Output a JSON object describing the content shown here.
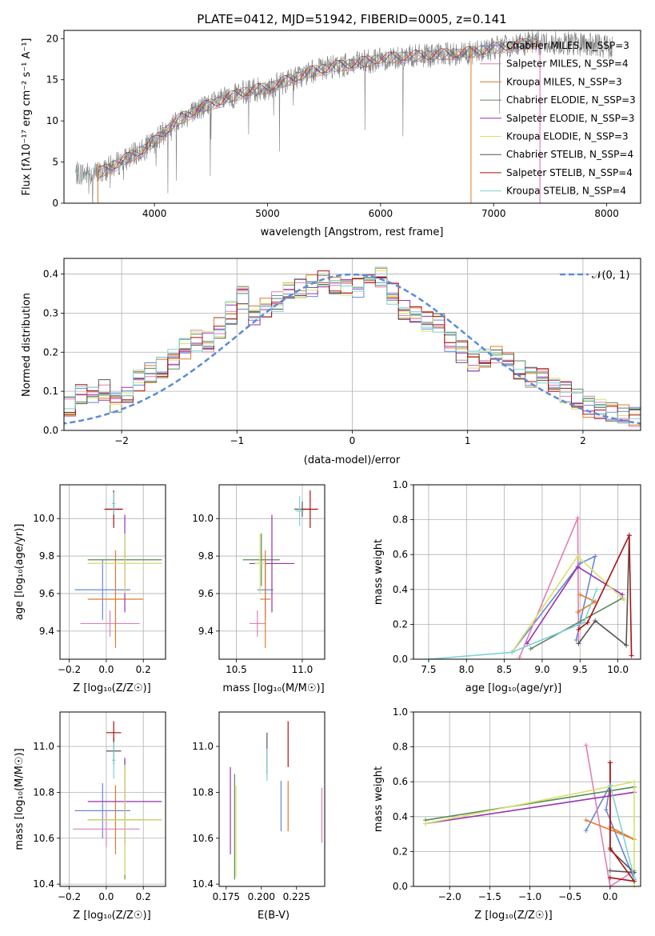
{
  "colors": {
    "Chabrier MILES": "#6688d8",
    "Salpeter MILES": "#e07fb5",
    "Kroupa MILES": "#e07b2a",
    "Chabrier ELODIE": "#5a8a5a",
    "Salpeter ELODIE": "#9932b0",
    "Kroupa ELODIE": "#d7e26a",
    "Chabrier STELIB": "#555555",
    "Salpeter STELIB": "#aa1111",
    "Kroupa STELIB": "#7fd0d8",
    "data": "#808080",
    "normal": "#5b8bd8"
  },
  "chart_data": [
    {
      "type": "line",
      "title": "PLATE=0412, MJD=51942, FIBERID=0005, z=0.141",
      "xlabel": "wavelength [Angstrom, rest frame]",
      "ylabel": "Flux [fλ10⁻¹⁷ erg cm⁻² s⁻¹ A⁻¹]",
      "xlim": [
        3200,
        8300
      ],
      "ylim": [
        0,
        21
      ],
      "xticks": [
        4000,
        5000,
        6000,
        7000,
        8000
      ],
      "yticks": [
        0,
        5,
        10,
        15,
        20
      ],
      "grid": false,
      "legend": "top-right",
      "legend_entries": [
        "Chabrier MILES, N_SSP=3",
        "Salpeter MILES, N_SSP=4",
        "Kroupa MILES, N_SSP=3",
        "Chabrier ELODIE, N_SSP=3",
        "Salpeter ELODIE, N_SSP=3",
        "Kroupa ELODIE, N_SSP=3",
        "Chabrier STELIB, N_SSP=4",
        "Salpeter STELIB, N_SSP=4",
        "Kroupa STELIB, N_SSP=4"
      ],
      "spectrum_anchors": {
        "wavelength": [
          3300,
          3500,
          3700,
          3900,
          4000,
          4200,
          4400,
          4600,
          4800,
          5000,
          5200,
          5400,
          5600,
          5800,
          6000,
          6200,
          6400,
          6600,
          6800,
          7000,
          7200,
          7400,
          7600,
          7800,
          8050
        ],
        "flux": [
          3.6,
          3.6,
          5.0,
          6.5,
          7.5,
          10.0,
          11.5,
          12.5,
          13.5,
          14.0,
          15.0,
          16.0,
          16.6,
          17.0,
          17.5,
          17.8,
          17.9,
          18.1,
          18.3,
          18.8,
          19.2,
          19.5,
          19.5,
          19.3,
          19.0
        ]
      }
    },
    {
      "type": "bar",
      "xlabel": "(data-model)/error",
      "ylabel": "Normed distribution",
      "xlim": [
        -2.5,
        2.5
      ],
      "ylim": [
        0,
        0.44
      ],
      "xticks": [
        -2,
        -1,
        0,
        1,
        2
      ],
      "yticks": [
        0.0,
        0.1,
        0.2,
        0.3,
        0.4
      ],
      "grid": true,
      "legend": "top-right",
      "legend_label": "𝒩(0, 1)",
      "bin_width": 0.1,
      "envelope_centers": [
        -2.45,
        -2.35,
        -2.25,
        -2.15,
        -2.05,
        -1.95,
        -1.85,
        -1.75,
        -1.65,
        -1.55,
        -1.45,
        -1.35,
        -1.25,
        -1.15,
        -1.05,
        -0.95,
        -0.85,
        -0.75,
        -0.65,
        -0.55,
        -0.45,
        -0.35,
        -0.25,
        -0.15,
        -0.05,
        0.05,
        0.15,
        0.25,
        0.35,
        0.45,
        0.55,
        0.65,
        0.75,
        0.85,
        0.95,
        1.05,
        1.15,
        1.25,
        1.35,
        1.45,
        1.55,
        1.65,
        1.75,
        1.85,
        1.95,
        2.05,
        2.15,
        2.25,
        2.35,
        2.45
      ],
      "envelope_values": [
        0.06,
        0.09,
        0.09,
        0.1,
        0.07,
        0.1,
        0.13,
        0.15,
        0.16,
        0.18,
        0.21,
        0.23,
        0.23,
        0.26,
        0.3,
        0.34,
        0.3,
        0.32,
        0.33,
        0.35,
        0.36,
        0.37,
        0.38,
        0.37,
        0.36,
        0.37,
        0.38,
        0.39,
        0.35,
        0.31,
        0.3,
        0.28,
        0.27,
        0.23,
        0.2,
        0.18,
        0.19,
        0.19,
        0.17,
        0.15,
        0.14,
        0.15,
        0.12,
        0.1,
        0.08,
        0.06,
        0.05,
        0.05,
        0.04,
        0.03
      ]
    },
    {
      "type": "scatter",
      "xlabel": "Z [log₁₀(Z/Z☉)]",
      "ylabel": "age  [log₁₀(age/yr)]",
      "xlim": [
        -0.25,
        0.32
      ],
      "ylim": [
        9.25,
        10.18
      ],
      "xticks": [
        -0.2,
        0.0,
        0.2
      ],
      "yticks": [
        9.4,
        9.6,
        9.8,
        10.0
      ],
      "grid": true,
      "points": [
        {
          "x": -0.02,
          "y": 9.62,
          "xerr": 0.15,
          "yerr": 0.16
        },
        {
          "x": 0.02,
          "y": 9.44,
          "xerr": 0.16,
          "yerr": 0.07
        },
        {
          "x": 0.05,
          "y": 9.57,
          "xerr": 0.15,
          "yerr": 0.26
        },
        {
          "x": 0.1,
          "y": 9.78,
          "xerr": 0.2,
          "yerr": 0.14
        },
        {
          "x": 0.1,
          "y": 9.76,
          "xerr": 0.2,
          "yerr": 0.26
        },
        {
          "x": 0.1,
          "y": 9.76,
          "xerr": 0.2,
          "yerr": 0.16
        },
        {
          "x": 0.04,
          "y": 10.05,
          "xerr": 0.04,
          "yerr": 0.04
        },
        {
          "x": 0.04,
          "y": 10.05,
          "xerr": 0.05,
          "yerr": 0.1
        },
        {
          "x": 0.04,
          "y": 10.08,
          "xerr": 0.01,
          "yerr": 0.06
        }
      ]
    },
    {
      "type": "scatter",
      "xlabel": "mass [log₁₀(M/M☉)]",
      "ylabel": "",
      "xlim": [
        10.37,
        11.17
      ],
      "ylim": [
        9.25,
        10.18
      ],
      "xticks": [
        10.5,
        11.0
      ],
      "yticks": [
        9.4,
        9.6,
        9.8,
        10.0
      ],
      "grid": true,
      "points": [
        {
          "x": 10.72,
          "y": 9.62,
          "xerr": 0.06,
          "yerr": 0.16
        },
        {
          "x": 10.66,
          "y": 9.44,
          "xerr": 0.06,
          "yerr": 0.07
        },
        {
          "x": 10.72,
          "y": 9.57,
          "xerr": 0.04,
          "yerr": 0.26
        },
        {
          "x": 10.69,
          "y": 9.78,
          "xerr": 0.14,
          "yerr": 0.14
        },
        {
          "x": 10.77,
          "y": 9.76,
          "xerr": 0.17,
          "yerr": 0.26
        },
        {
          "x": 10.68,
          "y": 9.76,
          "xerr": 0.04,
          "yerr": 0.16
        },
        {
          "x": 11.0,
          "y": 10.05,
          "xerr": 0.06,
          "yerr": 0.04
        },
        {
          "x": 11.06,
          "y": 10.05,
          "xerr": 0.06,
          "yerr": 0.1
        },
        {
          "x": 10.98,
          "y": 10.04,
          "xerr": 0.03,
          "yerr": 0.08
        }
      ]
    },
    {
      "type": "line",
      "xlabel": "age  [log₁₀(age/yr)]",
      "ylabel": "mass weight",
      "xlim": [
        7.3,
        10.3
      ],
      "ylim": [
        0,
        1
      ],
      "xticks": [
        7.5,
        8.0,
        8.5,
        9.0,
        9.5,
        10.0
      ],
      "yticks": [
        0.0,
        0.2,
        0.4,
        0.6,
        0.8,
        1.0
      ],
      "grid": true,
      "series": [
        {
          "x": [
            8.6,
            9.5,
            9.7,
            9.5,
            9.45
          ],
          "y": [
            0.04,
            0.55,
            0.59,
            0.21,
            0.11
          ]
        },
        {
          "x": [
            8.7,
            9.47,
            9.48
          ],
          "y": [
            0.01,
            0.81,
            0.09
          ]
        },
        {
          "x": [
            9.47,
            9.7,
            9.5
          ],
          "y": [
            0.27,
            0.33,
            0.37
          ]
        },
        {
          "x": [
            8.85,
            10.06
          ],
          "y": [
            0.06,
            0.35
          ]
        },
        {
          "x": [
            8.8,
            9.47,
            10.06
          ],
          "y": [
            0.09,
            0.53,
            0.37
          ]
        },
        {
          "x": [
            8.6,
            9.47,
            10.08
          ],
          "y": [
            0.04,
            0.59,
            0.34
          ]
        },
        {
          "x": [
            9.48,
            9.7,
            10.11,
            10.15
          ],
          "y": [
            0.09,
            0.22,
            0.08,
            0.71
          ]
        },
        {
          "x": [
            9.48,
            9.6,
            10.15,
            10.18
          ],
          "y": [
            0.17,
            0.21,
            0.71,
            0.02
          ]
        },
        {
          "x": [
            7.5,
            8.6,
            9.55,
            9.72
          ],
          "y": [
            0.0,
            0.04,
            0.21,
            0.4
          ]
        }
      ]
    },
    {
      "type": "scatter",
      "xlabel": "Z [log₁₀(Z/Z☉)]",
      "ylabel": "mass [log₁₀(M/M☉)]",
      "xlim": [
        -0.25,
        0.32
      ],
      "ylim": [
        10.39,
        11.15
      ],
      "xticks": [
        -0.2,
        0.0,
        0.2
      ],
      "yticks": [
        10.4,
        10.6,
        10.8,
        11.0
      ],
      "grid": true,
      "points": [
        {
          "x": -0.02,
          "y": 10.72,
          "xerr": 0.15,
          "yerr": 0.12
        },
        {
          "x": 0.0,
          "y": 10.64,
          "xerr": 0.18,
          "yerr": 0.08
        },
        {
          "x": 0.05,
          "y": 10.68,
          "xerr": 0.15,
          "yerr": 0.15
        },
        {
          "x": 0.1,
          "y": 10.68,
          "xerr": 0.2,
          "yerr": 0.26
        },
        {
          "x": 0.1,
          "y": 10.76,
          "xerr": 0.2,
          "yerr": 0.19
        },
        {
          "x": 0.1,
          "y": 10.68,
          "xerr": 0.2,
          "yerr": 0.24
        },
        {
          "x": 0.04,
          "y": 10.98,
          "xerr": 0.04,
          "yerr": 0.06
        },
        {
          "x": 0.04,
          "y": 11.06,
          "xerr": 0.04,
          "yerr": 0.05
        },
        {
          "x": 0.04,
          "y": 10.94,
          "xerr": 0.01,
          "yerr": 0.08
        }
      ]
    },
    {
      "type": "scatter",
      "xlabel": "E(B-V)",
      "ylabel": "",
      "xlim": [
        0.17,
        0.245
      ],
      "ylim": [
        10.39,
        11.15
      ],
      "xticks": [
        0.175,
        0.2,
        0.225
      ],
      "yticks": [
        10.4,
        10.6,
        10.8,
        11.0
      ],
      "grid": false,
      "points": [
        {
          "x": 0.214,
          "y": 10.74,
          "xerr": 0,
          "yerr": 0.11
        },
        {
          "x": 0.243,
          "y": 10.7,
          "xerr": 0,
          "yerr": 0.12
        },
        {
          "x": 0.219,
          "y": 10.74,
          "xerr": 0,
          "yerr": 0.11
        },
        {
          "x": 0.181,
          "y": 10.65,
          "xerr": 0,
          "yerr": 0.23
        },
        {
          "x": 0.178,
          "y": 10.72,
          "xerr": 0,
          "yerr": 0.19
        },
        {
          "x": 0.182,
          "y": 10.63,
          "xerr": 0,
          "yerr": 0.2
        },
        {
          "x": 0.204,
          "y": 10.97,
          "xerr": 0,
          "yerr": 0.09
        },
        {
          "x": 0.219,
          "y": 11.01,
          "xerr": 0,
          "yerr": 0.1
        },
        {
          "x": 0.204,
          "y": 10.92,
          "xerr": 0,
          "yerr": 0.07
        }
      ]
    },
    {
      "type": "line",
      "xlabel": "Z [log₁₀(Z/Z☉)]",
      "ylabel": "mass weight",
      "xlim": [
        -2.45,
        0.38
      ],
      "ylim": [
        0,
        1
      ],
      "xticks": [
        -2.0,
        -1.5,
        -1.0,
        -0.5,
        0.0
      ],
      "yticks": [
        0.0,
        0.2,
        0.4,
        0.6,
        0.8,
        1.0
      ],
      "grid": true,
      "series": [
        {
          "x": [
            -0.3,
            0.0,
            -0.05,
            0.3
          ],
          "y": [
            0.32,
            0.58,
            0.44,
            0.04
          ]
        },
        {
          "x": [
            -0.3,
            0.0,
            0.3,
            0.3
          ],
          "y": [
            0.81,
            0.0,
            0.09,
            0.09
          ]
        },
        {
          "x": [
            -0.3,
            0.3,
            0.0
          ],
          "y": [
            0.38,
            0.27,
            0.34
          ]
        },
        {
          "x": [
            -2.3,
            0.3
          ],
          "y": [
            0.38,
            0.57
          ]
        },
        {
          "x": [
            -2.3,
            0.3
          ],
          "y": [
            0.36,
            0.54
          ]
        },
        {
          "x": [
            -2.3,
            0.3,
            0.3
          ],
          "y": [
            0.36,
            0.6,
            0.0
          ]
        },
        {
          "x": [
            0.0,
            0.3,
            0.0,
            0.0
          ],
          "y": [
            0.09,
            0.08,
            0.21,
            0.71
          ]
        },
        {
          "x": [
            0.0,
            0.0,
            0.3,
            0.0
          ],
          "y": [
            0.71,
            0.22,
            0.03,
            0.05
          ]
        },
        {
          "x": [
            0.0,
            0.3
          ],
          "y": [
            0.58,
            0.05
          ]
        }
      ]
    }
  ]
}
